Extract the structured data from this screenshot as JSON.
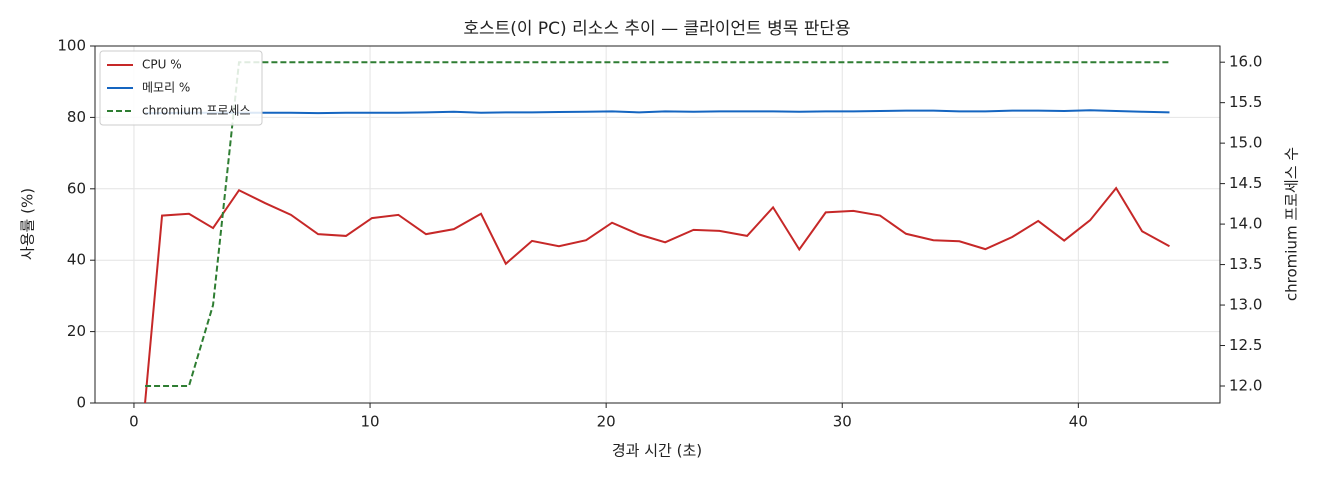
{
  "chart_data": {
    "type": "line",
    "title": "호스트(이 PC) 리소스 추이 — 클라이언트 병목 판단용",
    "x_label": "경과 시간 (초)",
    "y_label": "사용률 (%)",
    "y2_label": "chromium 프로세스 수",
    "x": [
      0.47,
      1.19,
      2.33,
      3.35,
      4.45,
      5.55,
      6.65,
      7.8,
      8.98,
      10.08,
      11.2,
      12.37,
      13.55,
      14.7,
      15.75,
      16.86,
      18.0,
      19.15,
      20.25,
      21.4,
      22.5,
      23.7,
      24.8,
      25.97,
      27.07,
      28.18,
      29.3,
      30.47,
      31.6,
      32.7,
      33.86,
      34.96,
      36.06,
      37.2,
      38.3,
      39.4,
      40.5,
      41.6,
      42.7,
      43.86
    ],
    "series": [
      {
        "name": "CPU %",
        "color": "#c62828",
        "dash": false,
        "values": [
          0,
          52.5,
          53,
          49,
          59.6,
          56,
          52.7,
          47.3,
          46.8,
          51.8,
          52.7,
          47.3,
          48.7,
          53,
          39,
          45.4,
          43.9,
          45.6,
          50.5,
          47.2,
          45,
          48.5,
          48.2,
          46.8,
          54.8,
          43,
          53.4,
          53.8,
          52.5,
          47.4,
          45.6,
          45.3,
          43.1,
          46.5,
          51,
          45.5,
          51.2,
          60.2,
          48.1,
          43.9
        ]
      },
      {
        "name": "메모리 %",
        "color": "#1565c0",
        "dash": false,
        "values": [
          81.2,
          81.2,
          81.3,
          81.3,
          81.3,
          81.3,
          81.3,
          81.2,
          81.3,
          81.3,
          81.3,
          81.4,
          81.6,
          81.3,
          81.4,
          81.4,
          81.5,
          81.6,
          81.7,
          81.4,
          81.7,
          81.6,
          81.7,
          81.7,
          81.7,
          81.6,
          81.7,
          81.7,
          81.8,
          81.9,
          81.9,
          81.7,
          81.7,
          81.9,
          81.9,
          81.8,
          82.0,
          81.8,
          81.6,
          81.4
        ]
      },
      {
        "name": "chromium 프로세스",
        "color": "#2e7d32",
        "dash": true,
        "axis": "y2",
        "values": [
          12,
          12,
          12,
          13,
          16,
          16,
          16,
          16,
          16,
          16,
          16,
          16,
          16,
          16,
          16,
          16,
          16,
          16,
          16,
          16,
          16,
          16,
          16,
          16,
          16,
          16,
          16,
          16,
          16,
          16,
          16,
          16,
          16,
          16,
          16,
          16,
          16,
          16,
          16,
          16
        ]
      }
    ],
    "xlim": [
      -1.65,
      46.0
    ],
    "xticks": [
      0,
      10,
      20,
      30,
      40
    ],
    "ylim": [
      0,
      100
    ],
    "yticks": [
      0,
      20,
      40,
      60,
      80,
      100
    ],
    "y2lim": [
      11.79,
      16.2
    ],
    "y2ticks": [
      {
        "value": 12,
        "label": "12.0"
      },
      12.5,
      {
        "value": 13,
        "label": "13.0"
      },
      13.5,
      {
        "value": 14,
        "label": "14.0"
      },
      14.5,
      {
        "value": 15,
        "label": "15.0"
      },
      15.5,
      {
        "value": 16,
        "label": "16.0"
      }
    ],
    "grid": true,
    "legend": "upper-left"
  }
}
